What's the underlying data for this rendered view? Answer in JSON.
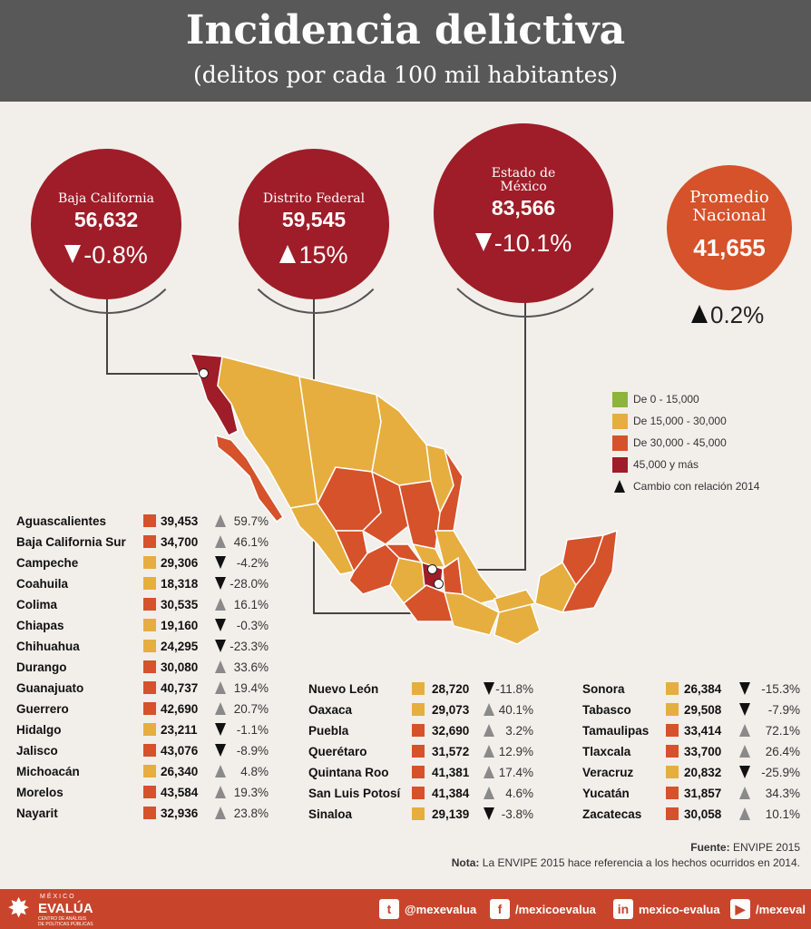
{
  "header": {
    "title": "Incidencia delictiva",
    "subtitle": "(delitos por cada 100 mil habitantes)"
  },
  "circles": {
    "baja": {
      "name": "Baja California",
      "value": "56,632",
      "change": "-0.8%"
    },
    "df": {
      "name": "Distrito Federal",
      "value": "59,545",
      "change": "15%"
    },
    "edomex": {
      "name1": "Estado de",
      "name2": "México",
      "value": "83,566",
      "change": "-10.1%"
    },
    "nacional": {
      "name1": "Promedio",
      "name2": "Nacional",
      "value": "41,655",
      "change": "0.2%"
    }
  },
  "legend": {
    "items": [
      {
        "label": "De 0 - 15,000",
        "color": "#8db43b"
      },
      {
        "label": "De 15,000 - 30,000",
        "color": "#e6ae3f"
      },
      {
        "label": "De 30,000 - 45,000",
        "color": "#d5522b"
      },
      {
        "label": "45,000 y más",
        "color": "#9e1d28"
      }
    ],
    "change_label": "Cambio con relación 2014"
  },
  "colors": {
    "low": "#8db43b",
    "mid": "#e6ae3f",
    "high": "#d5522b",
    "top": "#9e1d28",
    "header": "#585858",
    "footer": "#c8452c"
  },
  "table1": [
    {
      "state": "Aguascalientes",
      "value": "39,453",
      "change": "59.7%",
      "dir": "up",
      "band": "high"
    },
    {
      "state": "Baja California Sur",
      "value": "34,700",
      "change": "46.1%",
      "dir": "up",
      "band": "high"
    },
    {
      "state": "Campeche",
      "value": "29,306",
      "change": "-4.2%",
      "dir": "down",
      "band": "mid"
    },
    {
      "state": "Coahuila",
      "value": "18,318",
      "change": "-28.0%",
      "dir": "down",
      "band": "mid"
    },
    {
      "state": "Colima",
      "value": "30,535",
      "change": "16.1%",
      "dir": "up",
      "band": "high"
    },
    {
      "state": "Chiapas",
      "value": "19,160",
      "change": "-0.3%",
      "dir": "down",
      "band": "mid"
    },
    {
      "state": "Chihuahua",
      "value": "24,295",
      "change": "-23.3%",
      "dir": "down",
      "band": "mid"
    },
    {
      "state": "Durango",
      "value": "30,080",
      "change": "33.6%",
      "dir": "up",
      "band": "high"
    },
    {
      "state": "Guanajuato",
      "value": "40,737",
      "change": "19.4%",
      "dir": "up",
      "band": "high"
    },
    {
      "state": "Guerrero",
      "value": "42,690",
      "change": "20.7%",
      "dir": "up",
      "band": "high"
    },
    {
      "state": "Hidalgo",
      "value": "23,211",
      "change": "-1.1%",
      "dir": "down",
      "band": "mid"
    },
    {
      "state": "Jalisco",
      "value": "43,076",
      "change": "-8.9%",
      "dir": "down",
      "band": "high"
    },
    {
      "state": "Michoacán",
      "value": "26,340",
      "change": "4.8%",
      "dir": "up",
      "band": "mid"
    },
    {
      "state": "Morelos",
      "value": "43,584",
      "change": "19.3%",
      "dir": "up",
      "band": "high"
    },
    {
      "state": "Nayarit",
      "value": "32,936",
      "change": "23.8%",
      "dir": "up",
      "band": "high"
    }
  ],
  "table2": [
    {
      "state": "Nuevo León",
      "value": "28,720",
      "change": "-11.8%",
      "dir": "down",
      "band": "mid"
    },
    {
      "state": "Oaxaca",
      "value": "29,073",
      "change": "40.1%",
      "dir": "up",
      "band": "mid"
    },
    {
      "state": "Puebla",
      "value": "32,690",
      "change": "3.2%",
      "dir": "up",
      "band": "high"
    },
    {
      "state": "Querétaro",
      "value": "31,572",
      "change": "12.9%",
      "dir": "up",
      "band": "high"
    },
    {
      "state": "Quintana Roo",
      "value": "41,381",
      "change": "17.4%",
      "dir": "up",
      "band": "high"
    },
    {
      "state": "San Luis Potosí",
      "value": "41,384",
      "change": "4.6%",
      "dir": "up",
      "band": "high"
    },
    {
      "state": "Sinaloa",
      "value": "29,139",
      "change": "-3.8%",
      "dir": "down",
      "band": "mid"
    }
  ],
  "table3": [
    {
      "state": "Sonora",
      "value": "26,384",
      "change": "-15.3%",
      "dir": "down",
      "band": "mid"
    },
    {
      "state": "Tabasco",
      "value": "29,508",
      "change": "-7.9%",
      "dir": "down",
      "band": "mid"
    },
    {
      "state": "Tamaulipas",
      "value": "33,414",
      "change": "72.1%",
      "dir": "up",
      "band": "high"
    },
    {
      "state": "Tlaxcala",
      "value": "33,700",
      "change": "26.4%",
      "dir": "up",
      "band": "high"
    },
    {
      "state": "Veracruz",
      "value": "20,832",
      "change": "-25.9%",
      "dir": "down",
      "band": "mid"
    },
    {
      "state": "Yucatán",
      "value": "31,857",
      "change": "34.3%",
      "dir": "up",
      "band": "high"
    },
    {
      "state": "Zacatecas",
      "value": "30,058",
      "change": "10.1%",
      "dir": "up",
      "band": "high"
    }
  ],
  "notes": {
    "fuente_label": "Fuente:",
    "fuente": "ENVIPE 2015",
    "nota_label": "Nota:",
    "nota": "La ENVIPE 2015 hace referencia a los hechos ocurridos en 2014."
  },
  "logo": {
    "top": "MÉXICO",
    "name": "EVALÚA",
    "sub1": "CENTRO DE ANÁLISIS",
    "sub2": "DE POLÍTICAS PÚBLICAS"
  },
  "social": {
    "twitter": "@mexevalua",
    "facebook": "/mexicoevalua",
    "linkedin": "mexico-evalua",
    "youtube": "/mexeval"
  }
}
